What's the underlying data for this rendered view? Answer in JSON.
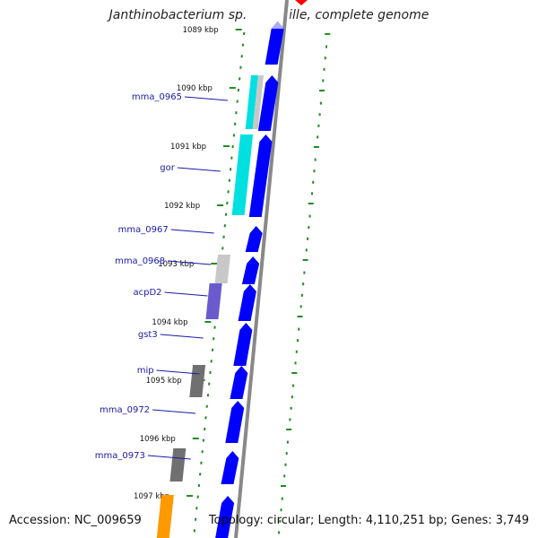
{
  "title": "Janthinobacterium sp. Marseille, complete genome",
  "accession_text": "Accession: NC_009659",
  "summary_text": "Topology: circular; Length: 4,110,251 bp; Genes: 3,749",
  "colors": {
    "cds": "#0000ff",
    "cds_faint": "#aaaaff",
    "backbone": "#888888",
    "tick": "#228b22",
    "label": "#1a1aaa",
    "cyan": "#00e0e0",
    "light_gray": "#c8c8c8",
    "purple": "#6a5acd",
    "dark_gray": "#707070",
    "orange": "#ff9900",
    "marker": "#ff0000"
  },
  "tick_labels": [
    "1089 kbp",
    "1090 kbp",
    "1091 kbp",
    "1092 kbp",
    "1093 kbp",
    "1094 kbp",
    "1095 kbp",
    "1096 kbp",
    "1097 kbp"
  ],
  "gene_labels": [
    "mma_0965",
    "gor",
    "mma_0967",
    "mma_0968",
    "acpD2",
    "gst3",
    "mip",
    "mma_0972",
    "mma_0973"
  ],
  "feature_types": {
    "cds": "protein-coding gene",
    "cyan": "feature track (cyan)",
    "light_gray": "feature track (light gray)",
    "purple": "feature track (purple)",
    "dark_gray": "feature track (dark gray)",
    "orange": "feature track (orange)"
  }
}
